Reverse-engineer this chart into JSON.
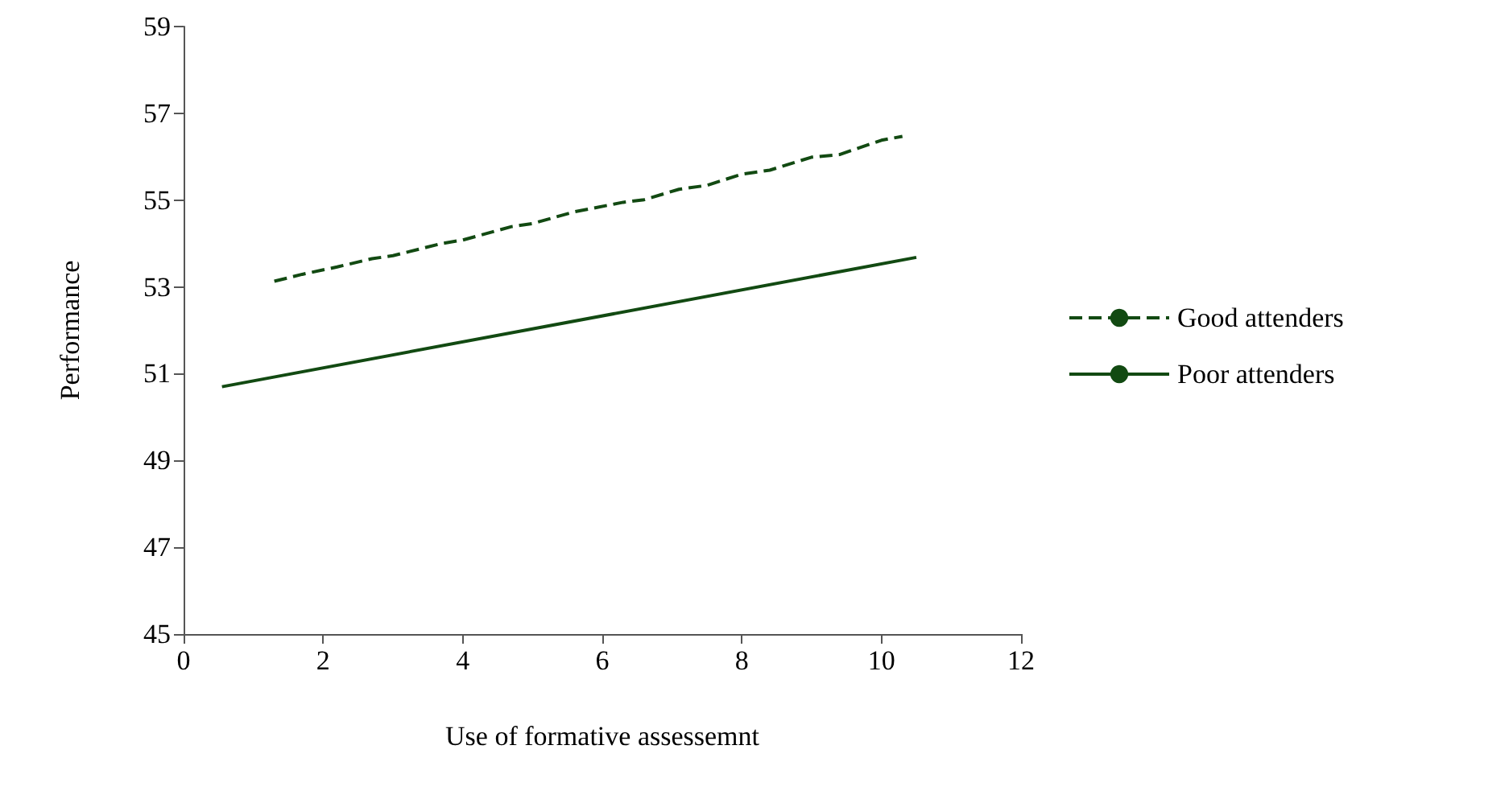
{
  "chart_data": {
    "type": "line",
    "xlabel": "Use of formative assessemnt",
    "ylabel": "Performance",
    "xlim": [
      0,
      12
    ],
    "xticks": [
      0,
      2,
      4,
      6,
      8,
      10,
      12
    ],
    "ylim": [
      45,
      59
    ],
    "yticks": [
      45,
      47,
      49,
      51,
      53,
      55,
      57,
      59
    ],
    "grid": false,
    "legend": "right",
    "marker": "none",
    "series": [
      {
        "name": "Good attenders",
        "color": "#124a12",
        "line_style": "dashed",
        "x": [
          1.3,
          1.7,
          2.2,
          2.7,
          3.0,
          3.7,
          4.0,
          4.7,
          5.0,
          5.6,
          6.3,
          6.6,
          7.1,
          7.5,
          8.0,
          8.4,
          9.0,
          9.4,
          10.0,
          10.3
        ],
        "values": [
          53.13,
          53.29,
          53.46,
          53.65,
          53.72,
          54.0,
          54.08,
          54.39,
          54.46,
          54.73,
          54.95,
          55.01,
          55.25,
          55.34,
          55.6,
          55.69,
          55.99,
          56.05,
          56.38,
          56.47
        ]
      },
      {
        "name": "Poor attenders",
        "color": "#124a12",
        "line_style": "solid",
        "x": [
          0.55,
          10.5
        ],
        "values": [
          50.7,
          53.68
        ]
      }
    ]
  }
}
